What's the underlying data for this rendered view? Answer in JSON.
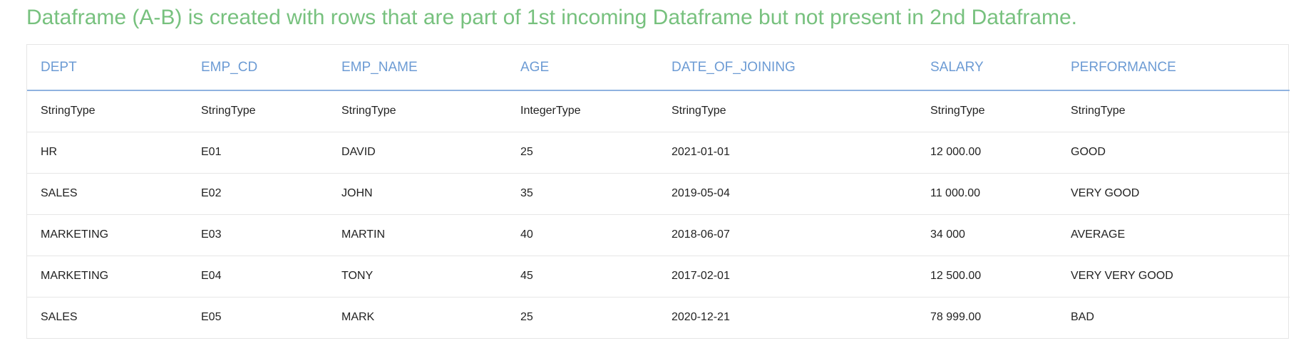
{
  "title": "Dataframe (A-B) is created with rows that are part of 1st incoming Dataframe but not present in 2nd Dataframe.",
  "colors": {
    "title": "#77c17e",
    "header_text": "#6c9bd4",
    "header_rule": "#8fb2e0",
    "row_rule": "#e6e6e6"
  },
  "table": {
    "headers": [
      "DEPT",
      "EMP_CD",
      "EMP_NAME",
      "AGE",
      "DATE_OF_JOINING",
      "SALARY",
      "PERFORMANCE"
    ],
    "rows": [
      [
        "StringType",
        "StringType",
        "StringType",
        "IntegerType",
        "StringType",
        "StringType",
        "StringType"
      ],
      [
        "HR",
        "E01",
        "DAVID",
        "25",
        "2021-01-01",
        "12 000.00",
        "GOOD"
      ],
      [
        "SALES",
        "E02",
        "JOHN",
        "35",
        "2019-05-04",
        "11 000.00",
        "VERY GOOD"
      ],
      [
        "MARKETING",
        "E03",
        "MARTIN",
        "40",
        "2018-06-07",
        "34 000",
        "AVERAGE"
      ],
      [
        "MARKETING",
        "E04",
        "TONY",
        "45",
        "2017-02-01",
        "12 500.00",
        "VERY VERY GOOD"
      ],
      [
        "SALES",
        "E05",
        "MARK",
        "25",
        "2020-12-21",
        "78 999.00",
        "BAD"
      ]
    ]
  }
}
